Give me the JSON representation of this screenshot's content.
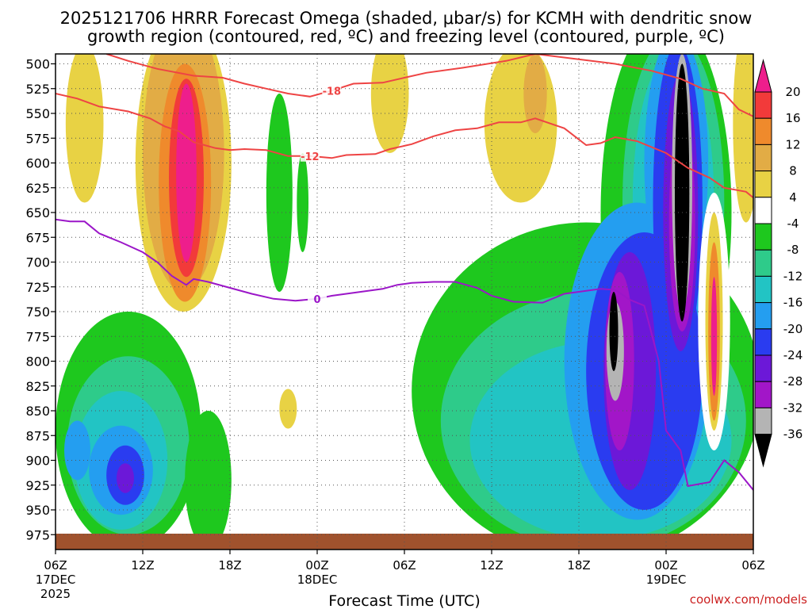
{
  "chart_data": {
    "type": "heatmap",
    "title_line1": "2025121706 HRRR Forecast Omega (shaded, μbar/s) for KCMH with dendritic snow",
    "title_line2": "growth region (contoured, red, ºC) and freezing level (contoured, purple, ºC)",
    "xlabel": "Forecast Time (UTC)",
    "credit": "coolwx.com/models",
    "x_range_hours": [
      0,
      48
    ],
    "y_range_mb": [
      490,
      990
    ],
    "y_ticks": [
      500,
      525,
      550,
      575,
      600,
      625,
      650,
      675,
      700,
      725,
      750,
      775,
      800,
      825,
      850,
      875,
      900,
      925,
      950,
      975
    ],
    "x_ticks": [
      {
        "hour": 0,
        "line1": "06Z",
        "line2": "17DEC",
        "line3": "2025"
      },
      {
        "hour": 6,
        "line1": "12Z",
        "line2": "",
        "line3": ""
      },
      {
        "hour": 12,
        "line1": "18Z",
        "line2": "",
        "line3": ""
      },
      {
        "hour": 18,
        "line1": "00Z",
        "line2": "18DEC",
        "line3": ""
      },
      {
        "hour": 24,
        "line1": "06Z",
        "line2": "",
        "line3": ""
      },
      {
        "hour": 30,
        "line1": "12Z",
        "line2": "",
        "line3": ""
      },
      {
        "hour": 36,
        "line1": "18Z",
        "line2": "",
        "line3": ""
      },
      {
        "hour": 42,
        "line1": "00Z",
        "line2": "19DEC",
        "line3": ""
      },
      {
        "hour": 48,
        "line1": "06Z",
        "line2": "",
        "line3": ""
      }
    ],
    "colorbar": {
      "ticks": [
        20,
        16,
        12,
        8,
        4,
        -4,
        -8,
        -12,
        -16,
        -20,
        -24,
        -28,
        -32,
        -36
      ],
      "bins": [
        {
          "range": ">20",
          "color": "#ee1e8c"
        },
        {
          "range": "16 to 20",
          "color": "#f23a3a"
        },
        {
          "range": "12 to 16",
          "color": "#ef8a2c"
        },
        {
          "range": "8 to 12",
          "color": "#e2ac45"
        },
        {
          "range": "4 to 8",
          "color": "#e8d244"
        },
        {
          "range": "-4 to 4",
          "color": "#ffffff"
        },
        {
          "range": "-8 to -4",
          "color": "#1ec81e"
        },
        {
          "range": "-12 to -8",
          "color": "#2ecb8a"
        },
        {
          "range": "-16 to -12",
          "color": "#22c4c4"
        },
        {
          "range": "-20 to -16",
          "color": "#249ef0"
        },
        {
          "range": "-24 to -20",
          "color": "#2a3cf0"
        },
        {
          "range": "-28 to -24",
          "color": "#6c18d8"
        },
        {
          "range": "-32 to -28",
          "color": "#a216c8"
        },
        {
          "range": "-36 to -32",
          "color": "#b4b4b4"
        },
        {
          "range": "<-36",
          "color": "#000000"
        }
      ]
    },
    "contours": [
      {
        "name": "dgz-top",
        "label": "-18",
        "color": "#ee4444",
        "points": [
          [
            3.5,
            490
          ],
          [
            5,
            497
          ],
          [
            7,
            505
          ],
          [
            9.5,
            512
          ],
          [
            11.5,
            514
          ],
          [
            13,
            520
          ],
          [
            14.5,
            525
          ],
          [
            16,
            530
          ],
          [
            17.5,
            533
          ],
          [
            19,
            527
          ],
          [
            20.5,
            520
          ],
          [
            22.5,
            519
          ],
          [
            24,
            514
          ],
          [
            25.5,
            509
          ],
          [
            28,
            504
          ],
          [
            31,
            497
          ],
          [
            33,
            490
          ],
          [
            38.5,
            500
          ],
          [
            41,
            507
          ],
          [
            43,
            515
          ],
          [
            44.5,
            525
          ],
          [
            46,
            530
          ],
          [
            47,
            546
          ],
          [
            48,
            553
          ]
        ]
      },
      {
        "name": "dgz-bottom",
        "label": "-12",
        "color": "#ee4444",
        "points": [
          [
            0,
            530
          ],
          [
            1.5,
            535
          ],
          [
            3,
            543
          ],
          [
            5,
            548
          ],
          [
            6.5,
            555
          ],
          [
            7.5,
            563
          ],
          [
            8.5,
            568
          ],
          [
            9.5,
            579
          ],
          [
            11,
            585
          ],
          [
            12,
            587
          ],
          [
            13,
            586
          ],
          [
            14.5,
            587
          ],
          [
            16,
            593
          ],
          [
            17.5,
            593
          ],
          [
            19,
            595
          ],
          [
            20,
            592
          ],
          [
            22,
            591
          ],
          [
            23,
            586
          ],
          [
            24.5,
            581
          ],
          [
            26,
            573
          ],
          [
            27.5,
            567
          ],
          [
            29,
            565
          ],
          [
            30.5,
            559
          ],
          [
            32,
            559
          ],
          [
            33,
            555
          ],
          [
            35,
            565
          ],
          [
            36.5,
            582
          ],
          [
            37.5,
            580
          ],
          [
            38.5,
            574
          ],
          [
            40,
            578
          ],
          [
            42,
            590
          ],
          [
            43.5,
            605
          ],
          [
            45,
            615
          ],
          [
            46,
            625
          ],
          [
            47.5,
            629
          ],
          [
            48,
            635
          ]
        ]
      },
      {
        "name": "freezing-level",
        "label": "0",
        "color": "#9b16c8",
        "points": [
          [
            0,
            657
          ],
          [
            1,
            659
          ],
          [
            2,
            659
          ],
          [
            3,
            671
          ],
          [
            4.5,
            680
          ],
          [
            6,
            690
          ],
          [
            7,
            700
          ],
          [
            8,
            714
          ],
          [
            9,
            723
          ],
          [
            9.5,
            717
          ],
          [
            10.5,
            720
          ],
          [
            12,
            726
          ],
          [
            13.5,
            732
          ],
          [
            15,
            737
          ],
          [
            16.5,
            739
          ],
          [
            18,
            737
          ],
          [
            19,
            734
          ],
          [
            21,
            730
          ],
          [
            22.5,
            727
          ],
          [
            23.5,
            723
          ],
          [
            24.5,
            721
          ],
          [
            26,
            720
          ],
          [
            27.5,
            720
          ],
          [
            29,
            726
          ],
          [
            30,
            734
          ],
          [
            31.5,
            740
          ],
          [
            33.5,
            741
          ],
          [
            35,
            732
          ],
          [
            36.5,
            729
          ],
          [
            37.5,
            727
          ],
          [
            38.5,
            728
          ],
          [
            39.5,
            738
          ],
          [
            40.5,
            744
          ],
          [
            41.5,
            800
          ],
          [
            42,
            870
          ],
          [
            43,
            890
          ],
          [
            43.5,
            926
          ],
          [
            45,
            922
          ],
          [
            46,
            900
          ],
          [
            47,
            912
          ],
          [
            48,
            930
          ]
        ]
      }
    ],
    "terrain_color": "#a0522d"
  }
}
